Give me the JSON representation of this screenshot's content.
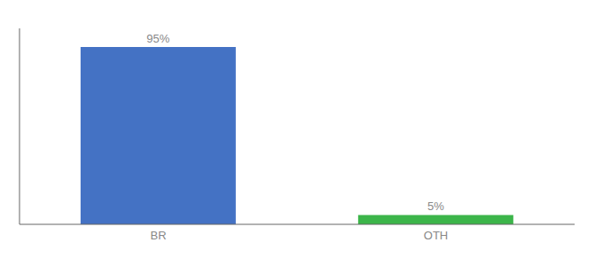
{
  "chart_data": {
    "type": "bar",
    "categories": [
      "BR",
      "OTH"
    ],
    "values": [
      95,
      5
    ],
    "value_labels": [
      "95%",
      "5%"
    ],
    "colors": [
      "#4472c4",
      "#3cb54a"
    ],
    "ylim": [
      0,
      105
    ],
    "data_labels": true,
    "tick_labels": "x",
    "grid": false
  }
}
